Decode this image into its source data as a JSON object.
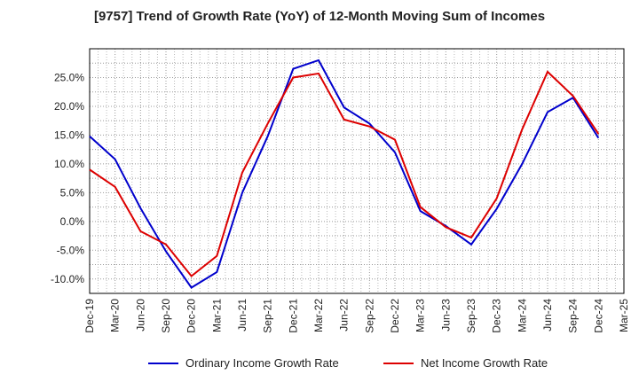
{
  "chart_data": {
    "type": "line",
    "title": "[9757]  Trend of Growth Rate (YoY) of 12-Month Moving Sum of Incomes",
    "xlabel": "",
    "ylabel": "",
    "x_ticks": [
      "Dec-19",
      "Mar-20",
      "Jun-20",
      "Sep-20",
      "Dec-20",
      "Mar-21",
      "Jun-21",
      "Sep-21",
      "Dec-21",
      "Mar-22",
      "Jun-22",
      "Sep-22",
      "Dec-22",
      "Mar-23",
      "Jun-23",
      "Sep-23",
      "Dec-23",
      "Mar-24",
      "Jun-24",
      "Sep-24",
      "Dec-24",
      "Mar-25"
    ],
    "y_ticks": [
      "25.0%",
      "20.0%",
      "15.0%",
      "10.0%",
      "5.0%",
      "0.0%",
      "-5.0%",
      "-10.0%"
    ],
    "y_tick_values": [
      25,
      20,
      15,
      10,
      5,
      0,
      -5,
      -10
    ],
    "ylim": [
      -12.5,
      30.0
    ],
    "grid": true,
    "legend_position": "bottom",
    "series": [
      {
        "name": "Ordinary Income Growth Rate",
        "color": "#0000cc",
        "x": [
          "Dec-19",
          "Mar-20",
          "Jun-20",
          "Sep-20",
          "Dec-20",
          "Mar-21",
          "Jun-21",
          "Sep-21",
          "Dec-21",
          "Mar-22",
          "Jun-22",
          "Sep-22",
          "Dec-22",
          "Mar-23",
          "Jun-23",
          "Sep-23",
          "Dec-23",
          "Mar-24",
          "Jun-24",
          "Sep-24",
          "Dec-24"
        ],
        "values": [
          14.8,
          10.8,
          2.3,
          -5.2,
          -11.5,
          -8.8,
          5.0,
          14.8,
          26.5,
          28.0,
          19.8,
          17.0,
          12.0,
          1.8,
          -0.8,
          -4.0,
          2.2,
          10.0,
          19.0,
          21.5,
          14.5
        ]
      },
      {
        "name": "Net Income Growth Rate",
        "color": "#dd0000",
        "x": [
          "Dec-19",
          "Mar-20",
          "Jun-20",
          "Sep-20",
          "Dec-20",
          "Mar-21",
          "Jun-21",
          "Sep-21",
          "Dec-21",
          "Mar-22",
          "Jun-22",
          "Sep-22",
          "Dec-22",
          "Mar-23",
          "Jun-23",
          "Sep-23",
          "Dec-23",
          "Mar-24",
          "Jun-24",
          "Sep-24",
          "Dec-24"
        ],
        "values": [
          9.0,
          6.0,
          -1.7,
          -4.0,
          -9.5,
          -6.0,
          8.5,
          17.0,
          25.0,
          25.7,
          17.7,
          16.5,
          14.2,
          2.5,
          -1.0,
          -2.8,
          4.0,
          16.0,
          26.0,
          21.8,
          15.2
        ]
      }
    ]
  }
}
